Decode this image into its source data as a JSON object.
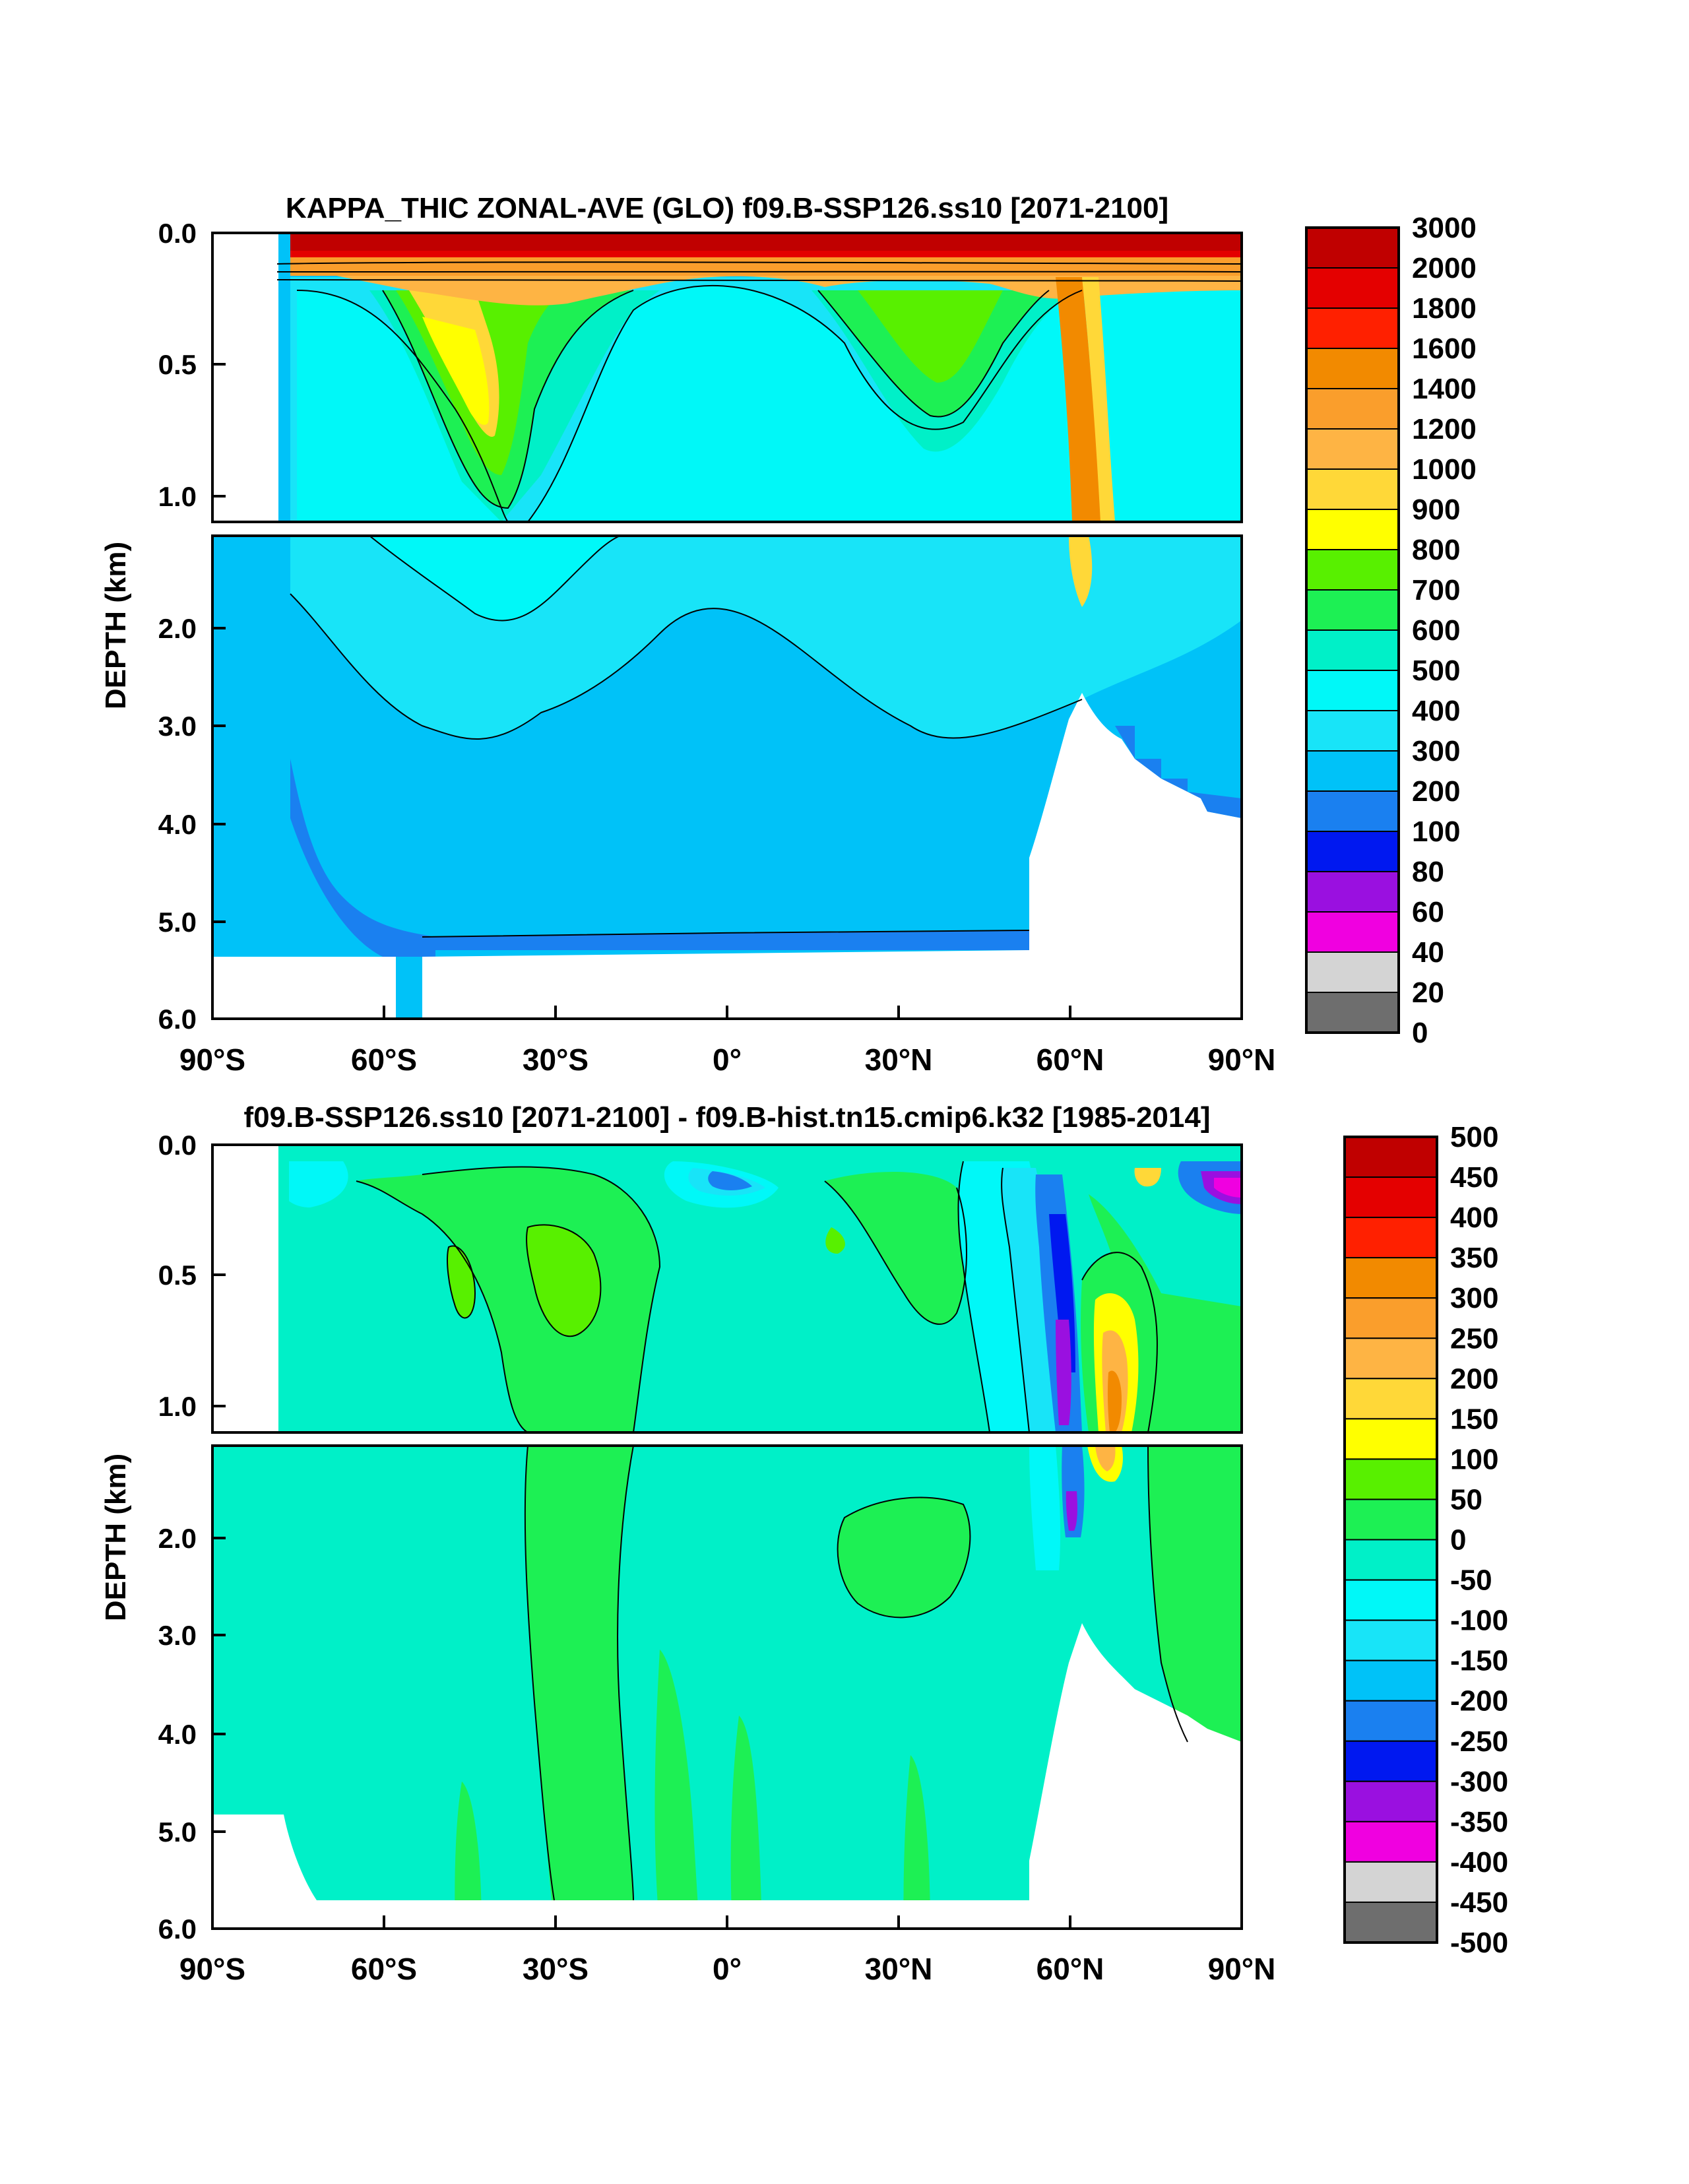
{
  "chart_data": [
    {
      "type": "heatmap",
      "title": "KAPPA_THIC ZONAL-AVE (GLO) f09.B-SSP126.ss10 [2071-2100]",
      "ylabel": "DEPTH (km)",
      "xlabel": "",
      "x_ticks": [
        "90°S",
        "60°S",
        "30°S",
        "0°",
        "30°N",
        "60°N",
        "90°N"
      ],
      "x_values": [
        -90,
        -60,
        -30,
        0,
        30,
        60,
        90
      ],
      "y_ticks_upper": [
        "0.0",
        "0.5",
        "1.0"
      ],
      "y_values_upper": [
        0.0,
        0.5,
        1.0
      ],
      "y_ticks_lower": [
        "2.0",
        "3.0",
        "4.0",
        "5.0",
        "6.0"
      ],
      "y_values_lower": [
        2.0,
        3.0,
        4.0,
        5.0,
        6.0
      ],
      "ylim": [
        0,
        6
      ],
      "xlim": [
        -90,
        90
      ],
      "colorbar_labels": [
        "3000",
        "2000",
        "1800",
        "1600",
        "1400",
        "1200",
        "1000",
        "900",
        "800",
        "700",
        "600",
        "500",
        "400",
        "300",
        "200",
        "100",
        "80",
        "60",
        "40",
        "20",
        "0"
      ],
      "colorbar_colors": [
        "#c00000",
        "#e40000",
        "#ff2000",
        "#f28a00",
        "#fa9e2c",
        "#feb444",
        "#ffd838",
        "#ffff00",
        "#58f000",
        "#1df054",
        "#00f0c8",
        "#00f8f8",
        "#18e4f8",
        "#00c2f8",
        "#1a80f0",
        "#0018f0",
        "#9a10e0",
        "#f000e0",
        "#d4d4d4",
        "#6e6e6e"
      ]
    },
    {
      "type": "heatmap",
      "title": "f09.B-SSP126.ss10 [2071-2100] - f09.B-hist.tn15.cmip6.k32 [1985-2014]",
      "ylabel": "DEPTH (km)",
      "xlabel": "",
      "x_ticks": [
        "90°S",
        "60°S",
        "30°S",
        "0°",
        "30°N",
        "60°N",
        "90°N"
      ],
      "x_values": [
        -90,
        -60,
        -30,
        0,
        30,
        60,
        90
      ],
      "y_ticks_upper": [
        "0.0",
        "0.5",
        "1.0"
      ],
      "y_values_upper": [
        0.0,
        0.5,
        1.0
      ],
      "y_ticks_lower": [
        "2.0",
        "3.0",
        "4.0",
        "5.0",
        "6.0"
      ],
      "y_values_lower": [
        2.0,
        3.0,
        4.0,
        5.0,
        6.0
      ],
      "ylim": [
        0,
        6
      ],
      "xlim": [
        -90,
        90
      ],
      "colorbar_labels": [
        "500",
        "450",
        "400",
        "350",
        "300",
        "250",
        "200",
        "150",
        "100",
        "50",
        "0",
        "-50",
        "-100",
        "-150",
        "-200",
        "-250",
        "-300",
        "-350",
        "-400",
        "-450",
        "-500"
      ],
      "colorbar_colors": [
        "#c00000",
        "#e40000",
        "#ff2000",
        "#f28a00",
        "#fa9e2c",
        "#feb444",
        "#ffd838",
        "#ffff00",
        "#58f000",
        "#1df054",
        "#00f0c8",
        "#00f8f8",
        "#18e4f8",
        "#00c2f8",
        "#1a80f0",
        "#0018f0",
        "#9a10e0",
        "#f000e0",
        "#d4d4d4",
        "#6e6e6e"
      ]
    }
  ]
}
